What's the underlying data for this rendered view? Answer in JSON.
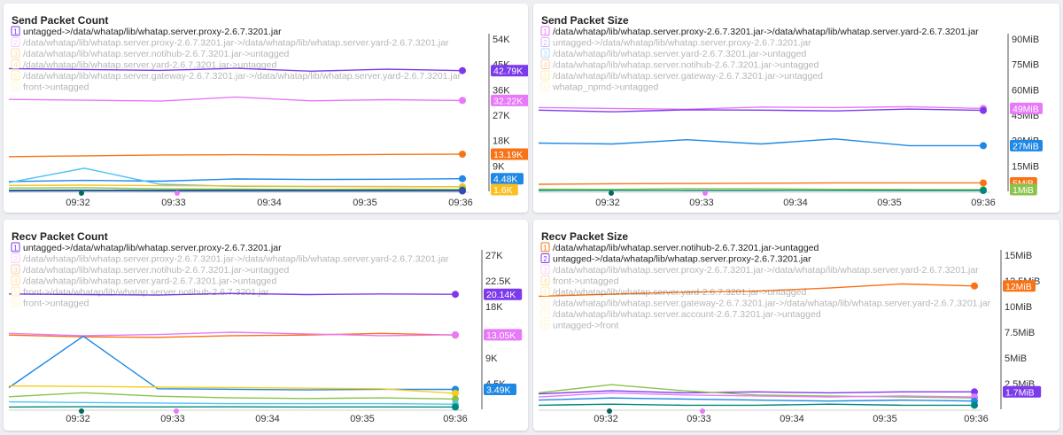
{
  "panels": [
    {
      "title": "Send Packet Count",
      "legend": [
        {
          "num": "1",
          "label": "untagged->/data/whatap/lib/whatap.server.proxy-2.6.7.3201.jar",
          "color": "#7c3aed",
          "dim": false
        },
        {
          "num": "2",
          "label": "/data/whatap/lib/whatap.server.proxy-2.6.7.3201.jar->/data/whatap/lib/whatap.server.yard-2.6.7.3201.jar",
          "color": "#e879f9",
          "dim": true
        },
        {
          "num": "3",
          "label": "/data/whatap/lib/whatap.server.notihub-2.6.7.3201.jar->untagged",
          "color": "#f59e0b",
          "dim": true
        },
        {
          "num": "4",
          "label": "/data/whatap/lib/whatap.server.yard-2.6.7.3201.jar->untagged",
          "color": "#f59e0b",
          "dim": true
        },
        {
          "num": "5",
          "label": "/data/whatap/lib/whatap.server.gateway-2.6.7.3201.jar->/data/whatap/lib/whatap.server.yard-2.6.7.3201.jar",
          "color": "#facc15",
          "dim": true
        },
        {
          "num": "6",
          "label": "front->untagged",
          "color": "#fde68a",
          "dim": true
        }
      ],
      "x_ticks": [
        "09:32",
        "09:33",
        "09:34",
        "09:35",
        "09:36"
      ],
      "y_ticks": [
        "54K",
        "45K",
        "36K",
        "27K",
        "18K",
        "9K"
      ],
      "y_max": 54000,
      "badges": [
        {
          "text": "42.79K",
          "value": 42790,
          "color": "#7c3aed"
        },
        {
          "text": "32.22K",
          "value": 32220,
          "color": "#e879f9"
        },
        {
          "text": "13.19K",
          "value": 13190,
          "color": "#f97316"
        },
        {
          "text": "4.48K",
          "value": 4480,
          "color": "#1e88e5"
        },
        {
          "text": "1.6K",
          "value": 1600,
          "color": "#fbbf24"
        }
      ],
      "series": [
        {
          "color": "#7c3aed",
          "values": [
            43500,
            43200,
            42900,
            43600,
            42600,
            43300,
            42790
          ]
        },
        {
          "color": "#e879f9",
          "values": [
            32600,
            32300,
            32000,
            33400,
            32100,
            32500,
            32220
          ]
        },
        {
          "color": "#f97316",
          "values": [
            12300,
            12600,
            12900,
            13000,
            12900,
            13100,
            13190
          ]
        },
        {
          "color": "#1e88e5",
          "values": [
            3500,
            3900,
            3600,
            4400,
            4200,
            4300,
            4480
          ]
        },
        {
          "color": "#4fc3f7",
          "values": [
            3100,
            8200,
            2500,
            1800,
            1700,
            1700,
            1600
          ]
        },
        {
          "color": "#fbbf24",
          "values": [
            2100,
            2200,
            2000,
            1900,
            1800,
            1700,
            1600
          ]
        },
        {
          "color": "#8bc34a",
          "values": [
            1200,
            1300,
            900,
            800,
            700,
            800,
            700
          ]
        },
        {
          "color": "#00897b",
          "values": [
            400,
            450,
            420,
            430,
            400,
            420,
            400
          ]
        },
        {
          "color": "#3949ab",
          "values": [
            150,
            180,
            160,
            170,
            150,
            160,
            150
          ]
        }
      ]
    },
    {
      "title": "Send Packet Size",
      "legend": [
        {
          "num": "1",
          "label": "/data/whatap/lib/whatap.server.proxy-2.6.7.3201.jar->/data/whatap/lib/whatap.server.yard-2.6.7.3201.jar",
          "color": "#e879f9",
          "dim": false
        },
        {
          "num": "2",
          "label": "untagged->/data/whatap/lib/whatap.server.proxy-2.6.7.3201.jar",
          "color": "#7c3aed",
          "dim": true
        },
        {
          "num": "3",
          "label": "/data/whatap/lib/whatap.server.yard-2.6.7.3201.jar->untagged",
          "color": "#1e88e5",
          "dim": true
        },
        {
          "num": "4",
          "label": "/data/whatap/lib/whatap.server.notihub-2.6.7.3201.jar->untagged",
          "color": "#f97316",
          "dim": true
        },
        {
          "num": "5",
          "label": "/data/whatap/lib/whatap.server.gateway-2.6.7.3201.jar->untagged",
          "color": "#facc15",
          "dim": true
        },
        {
          "num": "6",
          "label": "whatap_npmd->untagged",
          "color": "#fde68a",
          "dim": true
        }
      ],
      "x_ticks": [
        "09:32",
        "09:33",
        "09:34",
        "09:35",
        "09:36"
      ],
      "y_ticks": [
        "90MiB",
        "75MiB",
        "60MiB",
        "45MiB",
        "30MiB",
        "15MiB"
      ],
      "y_max": 90,
      "badges": [
        {
          "text": "49MiB",
          "value": 49,
          "color": "#e879f9"
        },
        {
          "text": "27MiB",
          "value": 27,
          "color": "#1e88e5"
        },
        {
          "text": "5MiB",
          "value": 5,
          "color": "#f97316"
        },
        {
          "text": "1MiB",
          "value": 1,
          "color": "#8bc34a"
        }
      ],
      "series": [
        {
          "color": "#e879f9",
          "values": [
            49.5,
            49.0,
            48.5,
            49.8,
            49.5,
            50.0,
            49.0
          ]
        },
        {
          "color": "#7c3aed",
          "values": [
            48.0,
            47.0,
            48.2,
            48.0,
            47.5,
            48.6,
            47.8
          ]
        },
        {
          "color": "#1e88e5",
          "values": [
            28.5,
            28.0,
            30.5,
            28.0,
            31.0,
            27.0,
            27.0
          ]
        },
        {
          "color": "#f97316",
          "values": [
            4.2,
            4.5,
            4.6,
            4.8,
            5.0,
            5.0,
            5.0
          ]
        },
        {
          "color": "#8bc34a",
          "values": [
            1.3,
            1.2,
            1.6,
            1.5,
            1.2,
            1.1,
            1.0
          ]
        },
        {
          "color": "#00897b",
          "values": [
            0.5,
            0.6,
            0.5,
            0.5,
            0.6,
            0.5,
            0.5
          ]
        }
      ]
    },
    {
      "title": "Recv Packet Count",
      "legend": [
        {
          "num": "1",
          "label": "untagged->/data/whatap/lib/whatap.server.proxy-2.6.7.3201.jar",
          "color": "#7c3aed",
          "dim": false
        },
        {
          "num": "2",
          "label": "/data/whatap/lib/whatap.server.proxy-2.6.7.3201.jar->/data/whatap/lib/whatap.server.yard-2.6.7.3201.jar",
          "color": "#e879f9",
          "dim": true
        },
        {
          "num": "3",
          "label": "/data/whatap/lib/whatap.server.notihub-2.6.7.3201.jar->untagged",
          "color": "#f97316",
          "dim": true
        },
        {
          "num": "4",
          "label": "/data/whatap/lib/whatap.server.yard-2.6.7.3201.jar->untagged",
          "color": "#f59e0b",
          "dim": true
        },
        {
          "num": "5",
          "label": "front->/data/whatap/lib/whatap.server.notihub-2.6.7.3201.jar",
          "color": "#facc15",
          "dim": true
        },
        {
          "num": "6",
          "label": "front->untagged",
          "color": "#fde68a",
          "dim": true
        }
      ],
      "x_ticks": [
        "09:32",
        "09:33",
        "09:34",
        "09:35",
        "09:36"
      ],
      "y_ticks": [
        "27K",
        "22.5K",
        "18K",
        "13.5K",
        "9K",
        "4.5K"
      ],
      "y_max": 27000,
      "badges": [
        {
          "text": "20.14K",
          "value": 20140,
          "color": "#7c3aed"
        },
        {
          "text": "13.05K",
          "value": 13050,
          "color": "#e879f9"
        },
        {
          "text": "3.49K",
          "value": 3490,
          "color": "#1e88e5"
        }
      ],
      "series": [
        {
          "color": "#7c3aed",
          "values": [
            20200,
            20100,
            20000,
            20300,
            20100,
            20200,
            20140
          ]
        },
        {
          "color": "#f97316",
          "values": [
            13000,
            12700,
            12600,
            12900,
            13000,
            13300,
            13000
          ]
        },
        {
          "color": "#e879f9",
          "values": [
            13300,
            12900,
            13100,
            13500,
            13200,
            12900,
            13050
          ]
        },
        {
          "color": "#1e88e5",
          "values": [
            3800,
            12800,
            3600,
            3500,
            3400,
            3500,
            3490
          ]
        },
        {
          "color": "#facc15",
          "values": [
            4100,
            4000,
            3900,
            3800,
            3700,
            3600,
            2800
          ]
        },
        {
          "color": "#8bc34a",
          "values": [
            2200,
            2900,
            2300,
            2000,
            1900,
            2000,
            1800
          ]
        },
        {
          "color": "#4fc3f7",
          "values": [
            1300,
            1200,
            1100,
            1000,
            1000,
            1000,
            900
          ]
        },
        {
          "color": "#00897b",
          "values": [
            400,
            450,
            420,
            430,
            400,
            420,
            400
          ]
        }
      ]
    },
    {
      "title": "Recv Packet Size",
      "legend": [
        {
          "num": "1",
          "label": "/data/whatap/lib/whatap.server.notihub-2.6.7.3201.jar->untagged",
          "color": "#f97316",
          "dim": false
        },
        {
          "num": "2",
          "label": "untagged->/data/whatap/lib/whatap.server.proxy-2.6.7.3201.jar",
          "color": "#7c3aed",
          "dim": false
        },
        {
          "num": "3",
          "label": "/data/whatap/lib/whatap.server.proxy-2.6.7.3201.jar->/data/whatap/lib/whatap.server.yard-2.6.7.3201.jar",
          "color": "#e879f9",
          "dim": true
        },
        {
          "num": "4",
          "label": "front->untagged",
          "color": "#f59e0b",
          "dim": true
        },
        {
          "num": "5",
          "label": "/data/whatap/lib/whatap.server.yard-2.6.7.3201.jar->untagged",
          "color": "#facc15",
          "dim": true
        },
        {
          "num": "6",
          "label": "/data/whatap/lib/whatap.server.gateway-2.6.7.3201.jar->/data/whatap/lib/whatap.server.yard-2.6.7.3201.jar",
          "color": "#fde68a",
          "dim": true
        },
        {
          "num": "7",
          "label": "/data/whatap/lib/whatap.server.account-2.6.7.3201.jar->untagged",
          "color": "#fde68a",
          "dim": true
        },
        {
          "num": "8",
          "label": "untagged->front",
          "color": "#fde68a",
          "dim": true
        }
      ],
      "x_ticks": [
        "09:32",
        "09:33",
        "09:34",
        "09:35",
        "09:36"
      ],
      "y_ticks": [
        "15MiB",
        "12.5MiB",
        "10MiB",
        "7.5MiB",
        "5MiB",
        "2.5MiB"
      ],
      "y_max": 15,
      "badges": [
        {
          "text": "12MiB",
          "value": 12,
          "color": "#f97316"
        },
        {
          "text": "1.7MiB",
          "value": 1.7,
          "color": "#7c3aed"
        }
      ],
      "series": [
        {
          "color": "#f97316",
          "values": [
            11.0,
            11.2,
            11.4,
            11.5,
            11.8,
            12.2,
            12.0
          ]
        },
        {
          "color": "#7c3aed",
          "values": [
            1.5,
            1.8,
            1.6,
            1.7,
            1.6,
            1.7,
            1.7
          ]
        },
        {
          "color": "#8bc34a",
          "values": [
            1.6,
            2.4,
            1.8,
            1.4,
            1.3,
            1.2,
            1.1
          ]
        },
        {
          "color": "#e879f9",
          "values": [
            1.2,
            1.6,
            1.4,
            1.3,
            1.2,
            1.3,
            1.2
          ]
        },
        {
          "color": "#1e88e5",
          "values": [
            0.9,
            1.1,
            1.0,
            0.9,
            0.8,
            0.9,
            0.8
          ]
        },
        {
          "color": "#00897b",
          "values": [
            0.4,
            0.5,
            0.4,
            0.4,
            0.5,
            0.4,
            0.4
          ]
        }
      ]
    }
  ]
}
